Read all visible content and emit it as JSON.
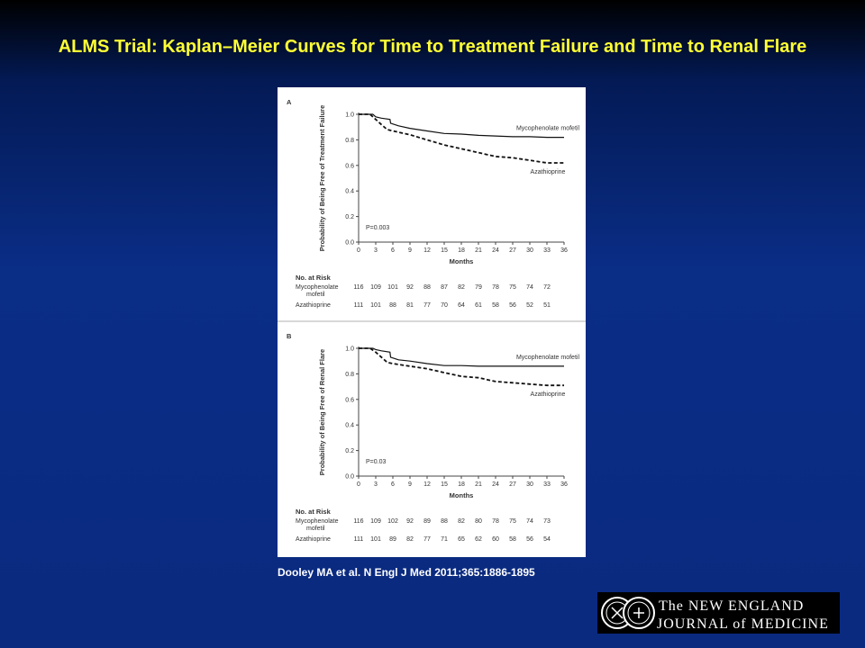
{
  "title": "ALMS Trial:  Kaplan–Meier Curves for Time to Treatment Failure and Time to Renal Flare",
  "citation": "Dooley MA et al. N Engl J Med 2011;365:1886-1895",
  "logo": {
    "line1": "The NEW ENGLAND",
    "line2": "JOURNAL of MEDICINE",
    "seal_icon": "nejm-seal-icon"
  },
  "colors": {
    "title": "#ffff33",
    "background_top": "#000000",
    "background_main": "#0a2d86"
  },
  "chart_data": [
    {
      "type": "line",
      "panel_label": "A",
      "ylabel": "Probability of Being Free of Treatment Failure",
      "xlabel": "Months",
      "xlim": [
        0,
        36
      ],
      "ylim": [
        0,
        1.0
      ],
      "x_ticks": [
        "0",
        "3",
        "6",
        "9",
        "12",
        "15",
        "18",
        "21",
        "24",
        "27",
        "30",
        "33",
        "36"
      ],
      "y_ticks": [
        "0.0",
        "0.2",
        "0.4",
        "0.6",
        "0.8",
        "1.0"
      ],
      "p_value": "P=0.003",
      "series": [
        {
          "name": "Mycophenolate mofetil",
          "style": "solid",
          "x": [
            0,
            2.5,
            3,
            4,
            5.5,
            5.6,
            7,
            9,
            12,
            15,
            18,
            21,
            24,
            27,
            30,
            33,
            36
          ],
          "y": [
            1.0,
            1.0,
            0.98,
            0.97,
            0.96,
            0.93,
            0.91,
            0.89,
            0.87,
            0.85,
            0.845,
            0.835,
            0.83,
            0.825,
            0.825,
            0.82,
            0.82
          ]
        },
        {
          "name": "Azathioprine",
          "style": "dashed",
          "x": [
            0,
            2,
            3,
            4,
            5,
            6,
            9,
            12,
            15,
            18,
            21,
            24,
            27,
            30,
            33,
            36
          ],
          "y": [
            1.0,
            1.0,
            0.96,
            0.92,
            0.88,
            0.87,
            0.84,
            0.8,
            0.76,
            0.73,
            0.7,
            0.67,
            0.66,
            0.64,
            0.62,
            0.62
          ]
        }
      ],
      "risk_table": {
        "header": "No. at Risk",
        "rows": [
          {
            "label": "Mycophenolate",
            "label2": "mofetil",
            "values": [
              "116",
              "109",
              "101",
              "92",
              "88",
              "87",
              "82",
              "79",
              "78",
              "75",
              "74",
              "72"
            ]
          },
          {
            "label": "Azathioprine",
            "label2": "",
            "values": [
              "111",
              "101",
              "88",
              "81",
              "77",
              "70",
              "64",
              "61",
              "58",
              "56",
              "52",
              "51"
            ]
          }
        ]
      }
    },
    {
      "type": "line",
      "panel_label": "B",
      "ylabel": "Probability of Being Free of Renal Flare",
      "xlabel": "Months",
      "xlim": [
        0,
        36
      ],
      "ylim": [
        0,
        1.0
      ],
      "x_ticks": [
        "0",
        "3",
        "6",
        "9",
        "12",
        "15",
        "18",
        "21",
        "24",
        "27",
        "30",
        "33",
        "36"
      ],
      "y_ticks": [
        "0.0",
        "0.2",
        "0.4",
        "0.6",
        "0.8",
        "1.0"
      ],
      "p_value": "P=0.03",
      "series": [
        {
          "name": "Mycophenolate mofetil",
          "style": "solid",
          "x": [
            0,
            2.5,
            3,
            4,
            5.5,
            5.6,
            7,
            9,
            12,
            15,
            18,
            21,
            24,
            27,
            30,
            33,
            36
          ],
          "y": [
            1.0,
            1.0,
            0.99,
            0.98,
            0.97,
            0.93,
            0.91,
            0.9,
            0.88,
            0.865,
            0.865,
            0.86,
            0.86,
            0.86,
            0.86,
            0.86,
            0.86
          ]
        },
        {
          "name": "Azathioprine",
          "style": "dashed",
          "x": [
            0,
            2,
            3,
            4,
            5,
            6,
            9,
            12,
            15,
            18,
            21,
            24,
            27,
            30,
            33,
            36
          ],
          "y": [
            1.0,
            1.0,
            0.97,
            0.93,
            0.89,
            0.88,
            0.86,
            0.84,
            0.81,
            0.78,
            0.77,
            0.74,
            0.73,
            0.72,
            0.71,
            0.71
          ]
        }
      ],
      "risk_table": {
        "header": "No. at Risk",
        "rows": [
          {
            "label": "Mycophenolate",
            "label2": "mofetil",
            "values": [
              "116",
              "109",
              "102",
              "92",
              "89",
              "88",
              "82",
              "80",
              "78",
              "75",
              "74",
              "73"
            ]
          },
          {
            "label": "Azathioprine",
            "label2": "",
            "values": [
              "111",
              "101",
              "89",
              "82",
              "77",
              "71",
              "65",
              "62",
              "60",
              "58",
              "56",
              "54"
            ]
          }
        ]
      }
    }
  ]
}
